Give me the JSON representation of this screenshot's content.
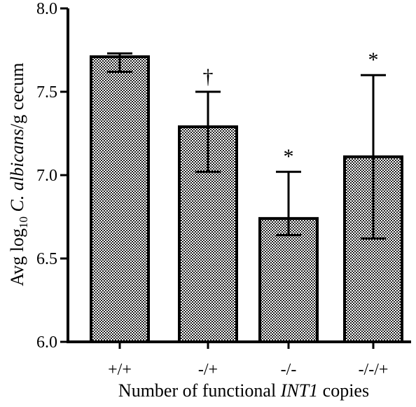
{
  "chart_data": {
    "type": "bar",
    "xlabel_parts": [
      {
        "text": "Number of functional ",
        "italic": false
      },
      {
        "text": "INT1",
        "italic": true
      },
      {
        "text": " copies",
        "italic": false
      }
    ],
    "ylabel_parts": [
      {
        "text": "Avg log",
        "italic": false,
        "sub": false
      },
      {
        "text": "10",
        "italic": false,
        "sub": true
      },
      {
        "text": " C. albicans",
        "italic": true,
        "sub": false
      },
      {
        "text": "/g cecum",
        "italic": false,
        "sub": false
      }
    ],
    "categories": [
      "+/+",
      "-/+",
      "-/-",
      "-/-/+"
    ],
    "values": [
      7.71,
      7.29,
      6.74,
      7.11
    ],
    "error_upper": [
      7.73,
      7.5,
      7.02,
      7.6
    ],
    "error_lower": [
      7.62,
      7.02,
      6.64,
      6.62
    ],
    "markers": [
      "",
      "†",
      "*",
      "*"
    ],
    "ylim": [
      6.0,
      8.0
    ],
    "yticks": [
      "6.0",
      "6.5",
      "7.0",
      "7.5",
      "8.0"
    ],
    "bar_fill": "checkered gray",
    "grid": false
  }
}
